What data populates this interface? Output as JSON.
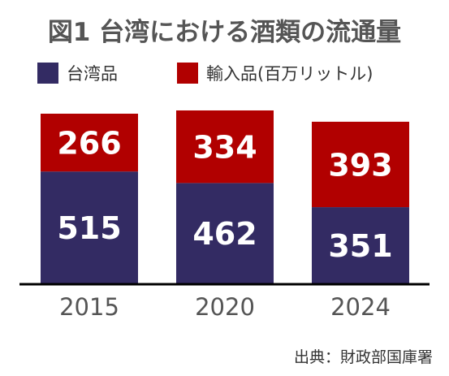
{
  "title": "図1 台湾における酒類の流通量",
  "source": "出典：財政部国庫署",
  "colors": {
    "domestic": "#332b63",
    "imported": "#b10000",
    "axis": "#000000",
    "label_text": "#ffffff",
    "tick_text": "#555555"
  },
  "chart_data": {
    "type": "bar",
    "stacked": true,
    "title": "図1 台湾における酒類の流通量",
    "categories": [
      "2015",
      "2020",
      "2024"
    ],
    "series": [
      {
        "name": "台湾品",
        "values": [
          515,
          462,
          351
        ]
      },
      {
        "name": "輸入品(百万リットル)",
        "values": [
          266,
          334,
          393
        ]
      }
    ],
    "ylim": [
      0,
      781
    ],
    "legend": "top",
    "grid": false,
    "data_labels": true
  }
}
